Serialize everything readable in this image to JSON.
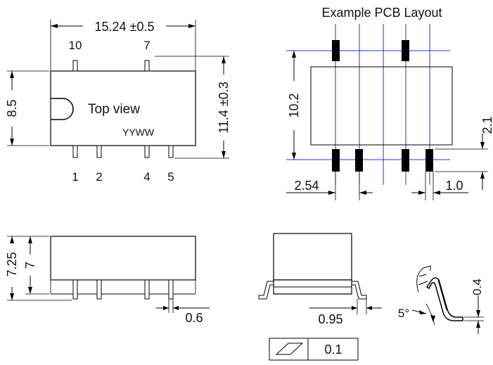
{
  "colors": {
    "grid": "#2233dd",
    "ink": "#000000"
  },
  "top_view": {
    "width_dim": "15.24 ±0.5",
    "height_dim": "8.5",
    "lead_span_dim": "11.4 ±0.3",
    "label": "Top view",
    "date_code": "YYWW",
    "pin_labels_top": [
      "10",
      "7"
    ],
    "pin_labels_bottom": [
      "1",
      "2",
      "4",
      "5"
    ]
  },
  "pcb_layout": {
    "title": "Example PCB Layout",
    "height_dim": "10.2",
    "pitch_dim": "2.54",
    "pad_width_dim": "1.0",
    "pad_length_dim": "2.1"
  },
  "side_view": {
    "total_height_dim": "7.25",
    "body_height_dim": "7",
    "lead_width_dim": "0.6"
  },
  "end_view": {
    "standoff_dim": "0.95",
    "flatness_value": "0.1",
    "flatness_symbol": "parallelogram-icon"
  },
  "lead_detail": {
    "angle_dim": "5°",
    "thickness_dim": "0.4"
  }
}
